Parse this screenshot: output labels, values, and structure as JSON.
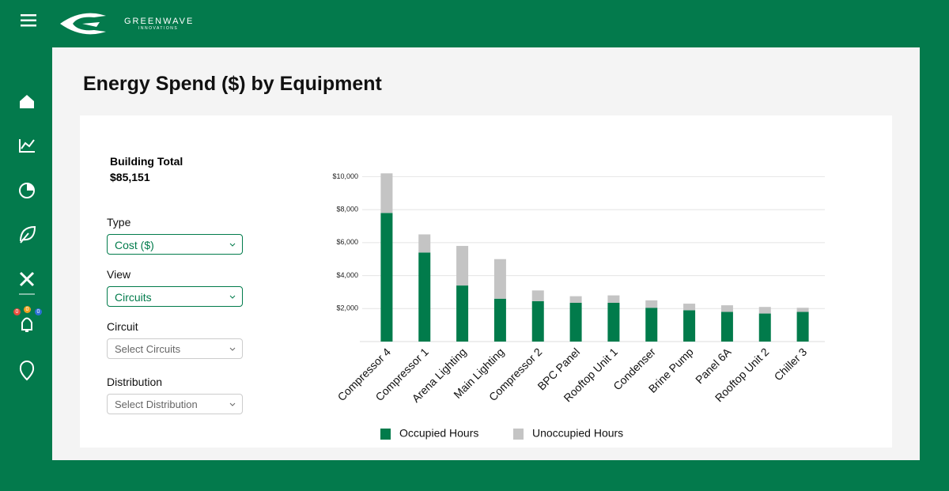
{
  "header": {
    "brand": "GREENWAVE",
    "tagline": "INNOVATIONS"
  },
  "nav": {
    "badges": [
      0,
      0,
      0
    ]
  },
  "summary": {
    "label": "Building Total",
    "value": "$85,151"
  },
  "filters": [
    {
      "label": "Type",
      "value": "Cost ($)"
    },
    {
      "label": "View",
      "value": "Circuits"
    },
    {
      "label": "Circuit",
      "value": "Select Circuits"
    },
    {
      "label": "Distribution",
      "value": "Select Distribution"
    }
  ],
  "chart_data": {
    "type": "bar",
    "stacked": true,
    "title": "Energy Spend ($) by Equipment",
    "categories": [
      "Compressor 4",
      "Compressor 1",
      "Arena Lighting",
      "Main Lighting",
      "Compressor 2",
      "BPC Panel",
      "Rooftop Unit 1",
      "Condenser",
      "Brine Pump",
      "Panel 6A",
      "Rooftop Unit 2",
      "Chiller 3"
    ],
    "series": [
      {
        "name": "Occupied Hours",
        "color": "#017b4b",
        "values": [
          7800,
          5400,
          3400,
          2600,
          2450,
          2350,
          2350,
          2050,
          1900,
          1800,
          1700,
          1800
        ]
      },
      {
        "name": "Unoccupied Hours",
        "color": "#c4c4c4",
        "values": [
          2400,
          1100,
          2400,
          2400,
          650,
          400,
          450,
          450,
          400,
          400,
          400,
          250
        ]
      }
    ],
    "ylim": [
      0,
      10500
    ],
    "yticks": [
      {
        "value": 2000,
        "label": "$2,000"
      },
      {
        "value": 4000,
        "label": "$4,000"
      },
      {
        "value": 6000,
        "label": "$6,000"
      },
      {
        "value": 8000,
        "label": "$8,000"
      },
      {
        "value": 10000,
        "label": "$10,000"
      }
    ],
    "grid": true,
    "legend": "bottom"
  }
}
